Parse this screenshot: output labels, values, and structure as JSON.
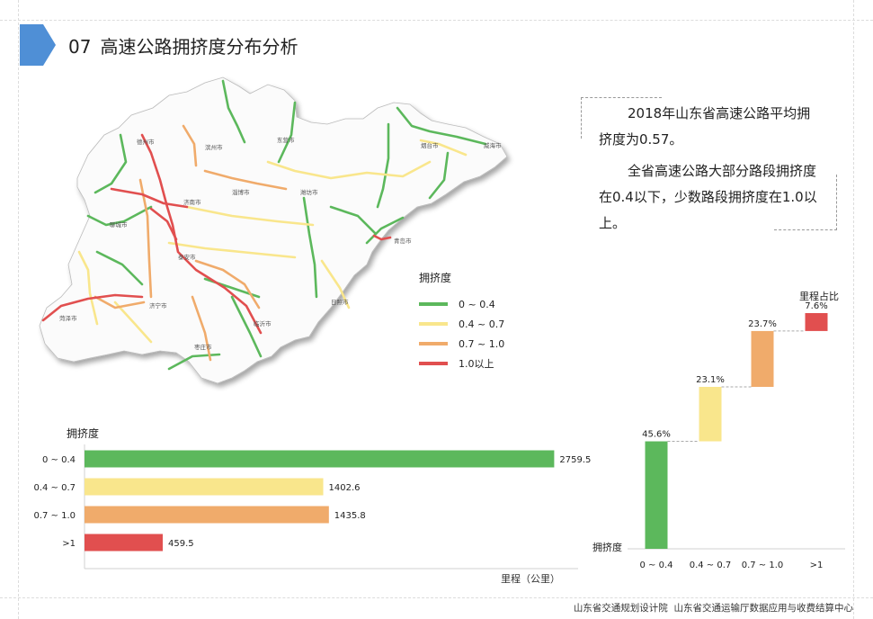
{
  "header": {
    "number": "07",
    "title": "高速公路拥挤度分布分析"
  },
  "summary": {
    "line1": "2018年山东省高速公路平均拥挤度为0.57。",
    "line2": "全省高速公路大部分路段拥挤度在0.4以下，少数路段拥挤度在1.0以上。"
  },
  "map": {
    "cities": [
      "德州市",
      "滨州市",
      "东营市",
      "烟台市",
      "威海市",
      "淄博市",
      "潍坊市",
      "济南市",
      "聊城市",
      "青岛市",
      "泰安市",
      "济宁市",
      "日照市",
      "菏泽市",
      "临沂市",
      "枣庄市"
    ]
  },
  "legend": {
    "title": "拥挤度",
    "items": [
      {
        "label": "0 ~ 0.4",
        "color": "#5cb85c"
      },
      {
        "label": "0.4 ~ 0.7",
        "color": "#f9e68c"
      },
      {
        "label": "0.7 ~ 1.0",
        "color": "#f0ab6b"
      },
      {
        "label": "1.0以上",
        "color": "#e14f4f"
      }
    ]
  },
  "chart_data": [
    {
      "type": "bar",
      "orientation": "horizontal",
      "title": "",
      "ylabel": "拥挤度",
      "xlabel": "里程（公里）",
      "categories": [
        "0 ~ 0.4",
        "0.4 ~ 0.7",
        "0.7 ~ 1.0",
        ">1"
      ],
      "values": [
        2759.5,
        1402.6,
        1435.8,
        459.5
      ],
      "value_labels": [
        "2759.5",
        "1402.6",
        "1435.8",
        "459.5"
      ],
      "colors": [
        "#5cb85c",
        "#f9e68c",
        "#f0ab6b",
        "#e14f4f"
      ],
      "xlim": [
        0,
        2900
      ]
    },
    {
      "type": "bar",
      "subtype": "waterfall",
      "title": "",
      "ylabel": "里程占比",
      "xlabel": "拥挤度",
      "categories": [
        "0 ~ 0.4",
        "0.4 ~ 0.7",
        "0.7 ~ 1.0",
        ">1"
      ],
      "values": [
        45.6,
        23.1,
        23.7,
        7.6
      ],
      "value_labels": [
        "45.6%",
        "23.1%",
        "23.7%",
        "7.6%"
      ],
      "colors": [
        "#5cb85c",
        "#f9e68c",
        "#f0ab6b",
        "#e14f4f"
      ],
      "ylim": [
        0,
        100
      ]
    }
  ],
  "footer": {
    "org1": "山东省交通规划设计院",
    "org2": "山东省交通运输厅数据应用与收费结算中心"
  }
}
